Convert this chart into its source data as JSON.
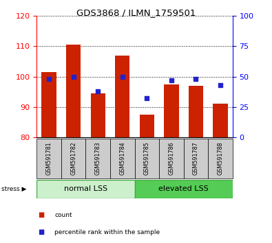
{
  "title": "GDS3868 / ILMN_1759501",
  "categories": [
    "GSM591781",
    "GSM591782",
    "GSM591783",
    "GSM591784",
    "GSM591785",
    "GSM591786",
    "GSM591787",
    "GSM591788"
  ],
  "red_values": [
    101.5,
    110.5,
    94.5,
    107.0,
    87.5,
    97.5,
    97.0,
    91.0
  ],
  "blue_values": [
    48,
    50,
    38,
    50,
    32,
    47,
    48,
    43
  ],
  "ylim_left": [
    80,
    120
  ],
  "ylim_right": [
    0,
    100
  ],
  "yticks_left": [
    80,
    90,
    100,
    110,
    120
  ],
  "yticks_right": [
    0,
    25,
    50,
    75,
    100
  ],
  "bar_color": "#cc2200",
  "dot_color": "#2222cc",
  "group1_label": "normal LSS",
  "group2_label": "elevated LSS",
  "group1_color": "#ccf0cc",
  "group2_color": "#55cc55",
  "stress_label": "stress",
  "legend_count": "count",
  "legend_pct": "percentile rank within the sample",
  "bar_bottom": 80,
  "tick_area_color": "#cccccc"
}
